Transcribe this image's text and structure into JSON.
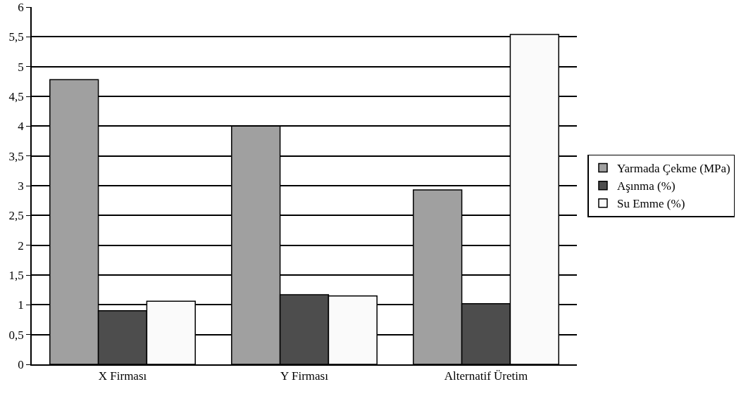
{
  "chart_data": {
    "type": "bar",
    "categories": [
      "X Firması",
      "Y Firması",
      "Alternatif Üretim"
    ],
    "series": [
      {
        "name": "Yarmada Çekme (MPa)",
        "color": "#a0a0a0",
        "values": [
          4.78,
          4.0,
          2.93
        ]
      },
      {
        "name": "Aşınma (%)",
        "color": "#4d4d4d",
        "values": [
          0.9,
          1.17,
          1.02
        ]
      },
      {
        "name": "Su Emme (%)",
        "color": "#fafafa",
        "values": [
          1.06,
          1.15,
          5.54
        ]
      }
    ],
    "ylim": [
      0,
      6
    ],
    "yticks": [
      0,
      {
        "value": 0.5,
        "label": "0,5"
      },
      1,
      {
        "value": 1.5,
        "label": "1,5"
      },
      2,
      {
        "value": 2.5,
        "label": "2,5"
      },
      3,
      {
        "value": 3.5,
        "label": "3,5"
      },
      4,
      {
        "value": 4.5,
        "label": "4,5"
      },
      5,
      {
        "value": 5.5,
        "label": "5,5"
      },
      6
    ],
    "grid": "y",
    "legend": "right"
  }
}
